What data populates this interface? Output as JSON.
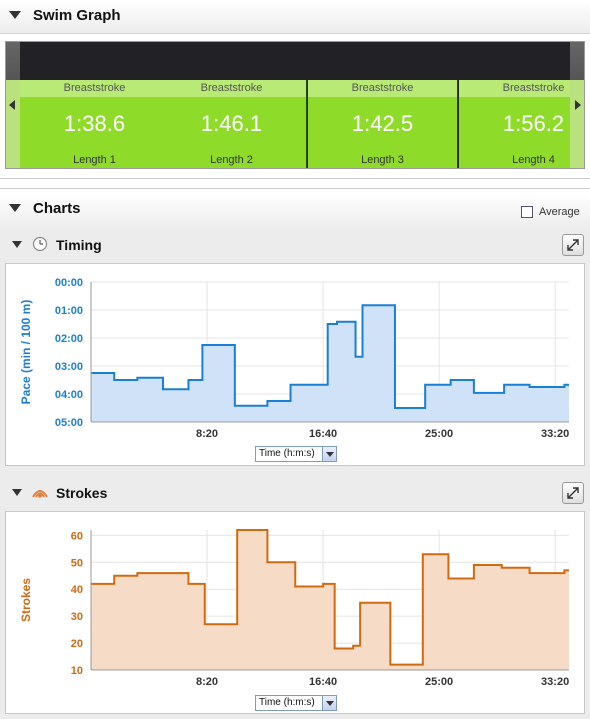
{
  "swim_graph": {
    "title": "Swim Graph",
    "lengths": [
      {
        "stroke": "Breaststroke",
        "time": "1:38.6",
        "name": "Length 1"
      },
      {
        "stroke": "Breaststroke",
        "time": "1:46.1",
        "name": "Length 2"
      },
      {
        "stroke": "Breaststroke",
        "time": "1:42.5",
        "name": "Length 3"
      },
      {
        "stroke": "Breaststroke",
        "time": "1:56.2",
        "name": "Length 4"
      }
    ]
  },
  "charts": {
    "title": "Charts",
    "average_label": "Average",
    "average_checked": false
  },
  "timing": {
    "title": "Timing",
    "icon": "clock-icon",
    "select_value": "Time (h:m:s)"
  },
  "strokes": {
    "title": "Strokes",
    "icon": "strokes-icon",
    "select_value": "Time (h:m:s)"
  },
  "colors": {
    "timing_line": "#1a7fd4",
    "timing_fill": "#cfe2f7",
    "strokes_line": "#d06a10",
    "strokes_fill": "#f6dcc6",
    "length_card": "#8fdb2a"
  },
  "chart_data": [
    {
      "type": "area",
      "name": "timing",
      "ylabel": "Pace (min / 100 m)",
      "xlabel": "",
      "x_ticks": [
        "8:20",
        "16:40",
        "25:00",
        "33:20"
      ],
      "x_tick_minutes": [
        8.333,
        16.667,
        25.0,
        33.333
      ],
      "y_ticks": [
        "00:00",
        "01:00",
        "02:00",
        "03:00",
        "04:00",
        "05:00"
      ],
      "ylim_pace_minutes": [
        5,
        0
      ],
      "x": [
        0,
        1.67,
        3.33,
        5.17,
        7.0,
        8.0,
        10.33,
        12.67,
        14.33,
        17.0,
        17.67,
        19.0,
        19.5,
        21.83,
        24.0,
        25.83,
        27.5,
        29.67,
        31.5,
        34.0
      ],
      "y": [
        3.25,
        3.5,
        3.42,
        3.83,
        3.5,
        2.25,
        4.42,
        4.25,
        3.67,
        1.5,
        1.42,
        2.67,
        0.83,
        4.5,
        3.67,
        3.5,
        3.96,
        3.67,
        3.75,
        3.67
      ],
      "x_end_minutes": 34.33
    },
    {
      "type": "area",
      "name": "strokes",
      "ylabel": "Strokes",
      "xlabel": "",
      "x_ticks": [
        "8:20",
        "16:40",
        "25:00",
        "33:20"
      ],
      "x_tick_minutes": [
        8.333,
        16.667,
        25.0,
        33.333
      ],
      "y_ticks": [
        "10",
        "20",
        "30",
        "40",
        "50",
        "60"
      ],
      "ylim": [
        10,
        62
      ],
      "x": [
        0,
        1.67,
        3.33,
        7.0,
        8.17,
        10.5,
        12.67,
        14.67,
        16.67,
        17.5,
        18.83,
        19.33,
        21.5,
        23.83,
        25.67,
        27.5,
        29.5,
        31.5,
        34.0
      ],
      "y": [
        42,
        45,
        46,
        42,
        27,
        62,
        50,
        41,
        42,
        18,
        19,
        35,
        12,
        53,
        44,
        49,
        48,
        46,
        47
      ],
      "x_end_minutes": 34.33
    }
  ]
}
